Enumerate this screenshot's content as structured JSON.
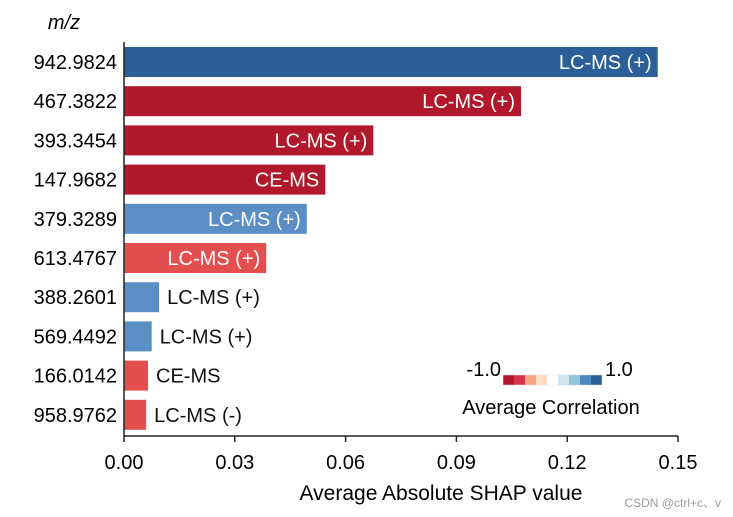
{
  "chart_data": {
    "type": "bar",
    "orientation": "horizontal",
    "y_header": "m/z",
    "xlabel": "Average Absolute SHAP value",
    "xlim": [
      0,
      0.15
    ],
    "xticks": [
      "0.00",
      "0.03",
      "0.06",
      "0.09",
      "0.12",
      "0.15"
    ],
    "categories": [
      "942.9824",
      "467.3822",
      "393.3454",
      "147.9682",
      "379.3289",
      "613.4767",
      "388.2601",
      "569.4492",
      "166.0142",
      "958.9762"
    ],
    "values": [
      0.1445,
      0.1075,
      0.0675,
      0.0545,
      0.0495,
      0.0385,
      0.0095,
      0.0075,
      0.0065,
      0.006
    ],
    "bar_labels": [
      "LC-MS (+)",
      "LC-MS (+)",
      "LC-MS (+)",
      "CE-MS",
      "LC-MS (+)",
      "LC-MS (+)",
      "LC-MS (+)",
      "LC-MS (+)",
      "CE-MS",
      "LC-MS (-)"
    ],
    "correlation": [
      1.0,
      -1.0,
      -1.0,
      -1.0,
      0.6,
      -0.6,
      0.6,
      0.6,
      -0.6,
      -0.6
    ],
    "colorbar": {
      "title": "Average Correlation",
      "min_label": "-1.0",
      "max_label": "1.0",
      "colors": [
        "#b2182b",
        "#d6334a",
        "#f4a582",
        "#fddbc7",
        "#ffffff",
        "#d1e5f0",
        "#92c5de",
        "#4f86c0",
        "#2c5f97"
      ]
    },
    "grid": false
  },
  "watermark": "CSDN @ctrl+c、v"
}
